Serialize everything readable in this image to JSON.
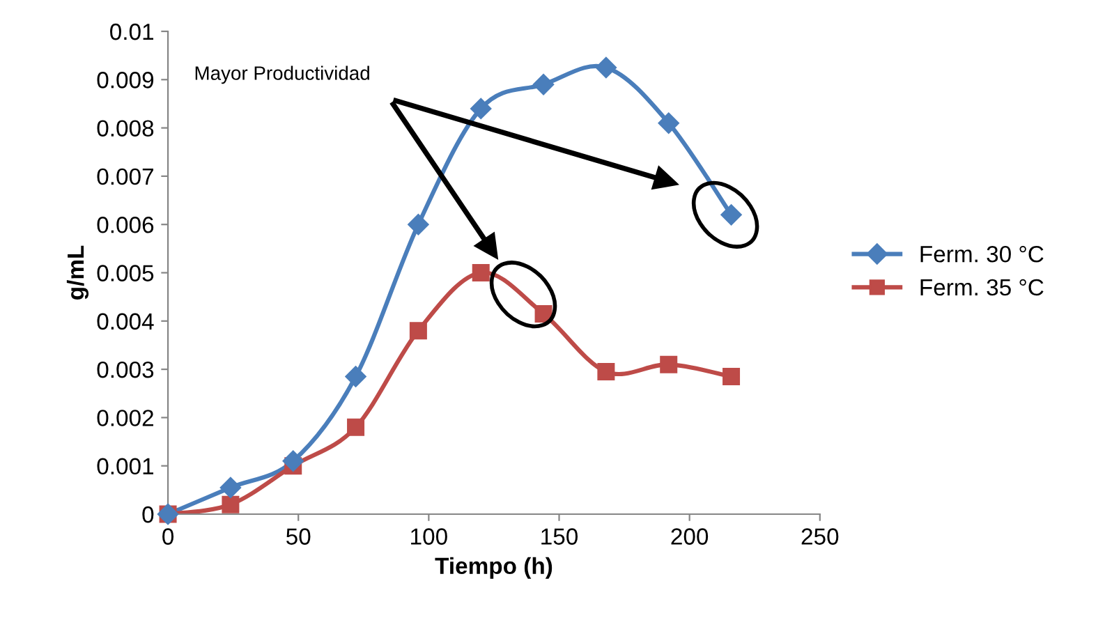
{
  "chart_data": {
    "type": "line",
    "xlabel": "Tiempo (h)",
    "ylabel": "g/mL",
    "x": [
      0,
      24,
      48,
      72,
      96,
      120,
      144,
      168,
      192,
      216
    ],
    "series": [
      {
        "name": "Ferm. 30 °C",
        "color": "#4a7ebb",
        "marker": "diamond",
        "values": [
          0,
          0.00055,
          0.0011,
          0.00285,
          0.006,
          0.0084,
          0.0089,
          0.00925,
          0.0081,
          0.0062
        ]
      },
      {
        "name": "Ferm. 35 °C",
        "color": "#be4b48",
        "marker": "square",
        "values": [
          0,
          0.0002,
          0.001,
          0.0018,
          0.0038,
          0.005,
          0.00415,
          0.00295,
          0.0031,
          0.00285
        ]
      }
    ],
    "xlim": [
      0,
      250
    ],
    "xticks": [
      0,
      50,
      100,
      150,
      200,
      250
    ],
    "ylim": [
      0,
      0.01
    ],
    "yticks": [
      0,
      0.001,
      0.002,
      0.003,
      0.004,
      0.005,
      0.006,
      0.007,
      0.008,
      0.009,
      0.01
    ],
    "grid": false,
    "legend": "right",
    "line_style": "solid",
    "annotations": [
      "Mayor Productividad"
    ]
  }
}
